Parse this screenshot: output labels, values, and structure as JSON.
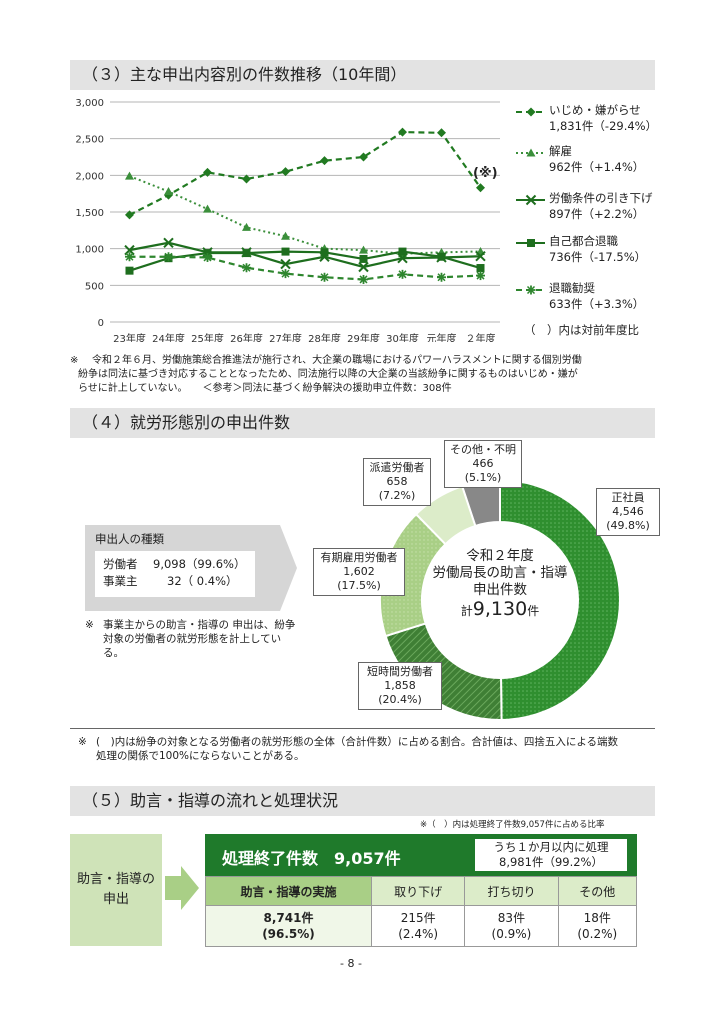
{
  "sec3": {
    "title": "（３）主な申出内容別の件数推移（10年間）",
    "asterisk_mark": "(※)",
    "legend_note": "（　）内は対前年度比",
    "note_mark": "※",
    "note_line1": "令和２年６月、労働施策総合推進法が施行され、大企業の職場におけるパワーハラスメントに関する個別労働",
    "note_line2": "紛争は同法に基づき対応することとなったため、同法施行以降の大企業の当該紛争に関するものはいじめ・嫌が",
    "note_line3": "らせに計上していない。　　＜参考＞同法に基づく紛争解決の援助申立件数：308件"
  },
  "legend": [
    {
      "name": "いじめ・嫌がらせ",
      "detail": "1,831件（-29.4%）"
    },
    {
      "name": "解雇",
      "detail": "962件（+1.4%）"
    },
    {
      "name": "労働条件の引き下げ",
      "detail": "897件（+2.2%）"
    },
    {
      "name": "自己都合退職",
      "detail": "736件（-17.5%）"
    },
    {
      "name": "退職勧奨",
      "detail": "633件（+3.3%）"
    }
  ],
  "chart_data": [
    {
      "type": "line",
      "categories": [
        "23年度",
        "24年度",
        "25年度",
        "26年度",
        "27年度",
        "28年度",
        "29年度",
        "30年度",
        "元年度",
        "２年度"
      ],
      "ylim": [
        0,
        3000
      ],
      "yticks": [
        "0",
        "500",
        "1,000",
        "1,500",
        "2,000",
        "2,500",
        "3,000"
      ],
      "ytick_values": [
        0,
        500,
        1000,
        1500,
        2000,
        2500,
        3000
      ],
      "grid": true,
      "legend_position": "right",
      "series": [
        {
          "name": "いじめ・嫌がらせ",
          "values": [
            1460,
            1730,
            2040,
            1950,
            2050,
            2200,
            2250,
            2590,
            2580,
            1831
          ],
          "color": "#217a21",
          "style": "dashed",
          "marker": "diamond"
        },
        {
          "name": "解雇",
          "values": [
            1990,
            1780,
            1540,
            1290,
            1170,
            1000,
            980,
            930,
            950,
            962
          ],
          "color": "#3b8f3b",
          "style": "dotted",
          "marker": "triangle"
        },
        {
          "name": "労働条件の引き下げ",
          "values": [
            980,
            1080,
            950,
            950,
            790,
            890,
            750,
            870,
            880,
            897
          ],
          "color": "#1e6e1e",
          "style": "solid",
          "marker": "x"
        },
        {
          "name": "自己都合退職",
          "values": [
            700,
            870,
            940,
            940,
            960,
            950,
            860,
            960,
            890,
            736
          ],
          "color": "#1e6e1e",
          "style": "solid",
          "marker": "square"
        },
        {
          "name": "退職勧奨",
          "values": [
            890,
            890,
            880,
            740,
            660,
            610,
            580,
            650,
            610,
            633
          ],
          "color": "#2e862e",
          "style": "dashed",
          "marker": "asterisk"
        }
      ]
    },
    {
      "type": "pie",
      "categories": [
        "正社員",
        "短時間労働者",
        "有期雇用労働者",
        "派遣労働者",
        "その他・不明"
      ],
      "values": [
        4546,
        1858,
        1602,
        658,
        466
      ],
      "percents": [
        "49.8%",
        "20.4%",
        "17.5%",
        "7.2%",
        "5.1%"
      ],
      "colors": [
        "#2f8f2f",
        "#4a8c3c",
        "#a9cf86",
        "#dcecc9",
        "#888888"
      ]
    }
  ],
  "sec4": {
    "title": "（４）就労形態別の申出件数",
    "center_line1": "令和２年度",
    "center_line2": "労働局長の助言・指導",
    "center_line3": "申出件数",
    "center_prefix": "計",
    "center_value": "9,130",
    "center_unit": "件",
    "labels": [
      {
        "name": "正社員",
        "count": "4,546",
        "pct": "(49.8%)"
      },
      {
        "name": "短時間労働者",
        "count": "1,858",
        "pct": "(20.4%)"
      },
      {
        "name": "有期雇用労働者",
        "count": "1,602",
        "pct": "(17.5%)"
      },
      {
        "name": "派遣労働者",
        "count": "658",
        "pct": "(7.2%)"
      },
      {
        "name": "その他・不明",
        "count": "466",
        "pct": "(5.1%)"
      }
    ],
    "applicant_title": "申出人の種類",
    "applicant_rows": [
      {
        "label": "労働者",
        "value": "9,098（99.6%）"
      },
      {
        "label": "事業主",
        "value": "32（ 0.4%）"
      }
    ],
    "applicant_note_mark": "※",
    "applicant_note": "事業主からの助言・指導の 申出は、紛争対象の労働者の就労形態を計上している。",
    "bottom_note_mark": "※",
    "bottom_note_line1": "(　)内は紛争の対象となる労働者の就労形態の全体（合計件数）に占める割合。合計値は、四捨五入による端数",
    "bottom_note_line2": "処理の関係で100%にならないことがある。"
  },
  "sec5": {
    "title": "（５）助言・指導の流れと処理状況",
    "ratio_note": "※（　）内は処理終了件数9,057件に占める比率",
    "left_label_1": "助言・指導の",
    "left_label_2": "申出",
    "completed_label": "処理終了件数　9,057件",
    "within_month_1": "うち１か月以内に処理",
    "within_month_2": "8,981件（99.2%）",
    "columns": [
      "助言・指導の実施",
      "取り下げ",
      "打ち切り",
      "その他"
    ],
    "values": [
      "8,741件",
      "215件",
      "83件",
      "18件"
    ],
    "percents": [
      "(96.5%)",
      "(2.4%)",
      "(0.9%)",
      "(0.2%)"
    ]
  },
  "footer": {
    "page": "- 8 -"
  }
}
